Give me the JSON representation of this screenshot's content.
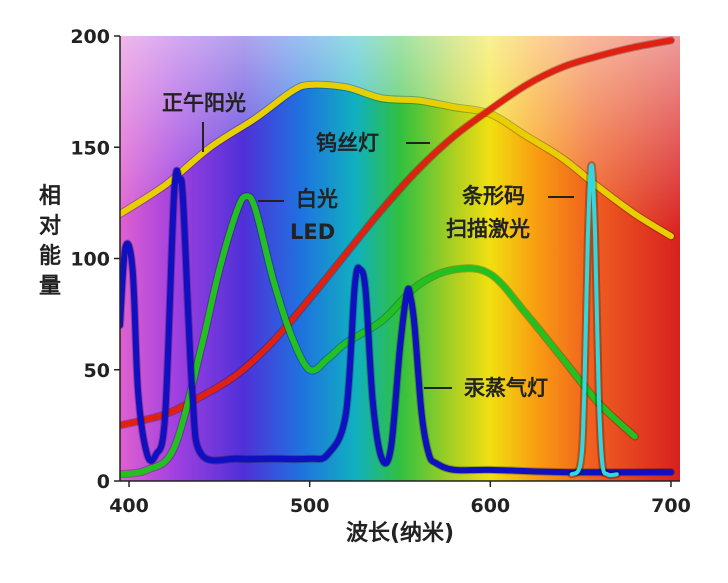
{
  "chart_data": {
    "type": "line",
    "title": "",
    "xlabel": "波长(纳米)",
    "ylabel": "相对能量",
    "ylabel_chars": [
      "相",
      "对",
      "能",
      "量"
    ],
    "xlim": [
      395,
      705
    ],
    "ylim": [
      0,
      200
    ],
    "x_ticks": [
      "400",
      "500",
      "600",
      "700"
    ],
    "y_ticks": [
      "0",
      "50",
      "100",
      "150",
      "200"
    ],
    "grid": false,
    "background": "visible spectrum gradient",
    "series": [
      {
        "name": "正午阳光",
        "color": "#e8d000",
        "x": [
          395,
          420,
          445,
          470,
          490,
          500,
          520,
          540,
          560,
          580,
          600,
          620,
          640,
          660,
          680,
          700
        ],
        "y": [
          120,
          133,
          150,
          163,
          175,
          178,
          177,
          172,
          171,
          168,
          165,
          155,
          145,
          132,
          120,
          110
        ]
      },
      {
        "name": "钨丝灯",
        "color": "#e02010",
        "x": [
          395,
          420,
          440,
          460,
          480,
          500,
          520,
          540,
          560,
          580,
          600,
          620,
          640,
          660,
          680,
          700
        ],
        "y": [
          25,
          30,
          38,
          48,
          63,
          82,
          102,
          122,
          140,
          155,
          167,
          178,
          186,
          191,
          195,
          198
        ]
      },
      {
        "name": "白光LED",
        "color": "#22c020",
        "x": [
          395,
          410,
          425,
          440,
          450,
          460,
          465,
          470,
          480,
          490,
          500,
          510,
          520,
          540,
          560,
          580,
          600,
          620,
          640,
          660,
          680
        ],
        "y": [
          3,
          5,
          15,
          60,
          95,
          122,
          128,
          122,
          90,
          65,
          50,
          55,
          62,
          72,
          88,
          95,
          93,
          75,
          55,
          35,
          20
        ]
      },
      {
        "name": "汞蒸气灯",
        "color": "#1010c0",
        "x": [
          395,
          398,
          402,
          405,
          410,
          415,
          420,
          425,
          428,
          430,
          435,
          440,
          460,
          480,
          500,
          510,
          520,
          525,
          528,
          531,
          535,
          540,
          545,
          550,
          554,
          556,
          558,
          562,
          566,
          570,
          580,
          600,
          640,
          700
        ],
        "y": [
          70,
          105,
          95,
          40,
          12,
          12,
          30,
          130,
          135,
          125,
          40,
          12,
          10,
          10,
          10,
          12,
          30,
          88,
          95,
          85,
          35,
          10,
          15,
          60,
          85,
          82,
          70,
          30,
          12,
          8,
          5,
          5,
          4,
          4
        ]
      },
      {
        "name": "条形码扫描激光",
        "color": "#30d8e0",
        "x": [
          645,
          650,
          652,
          654,
          656,
          658,
          660,
          662,
          665,
          670
        ],
        "y": [
          3,
          8,
          40,
          110,
          142,
          110,
          40,
          8,
          3,
          3
        ]
      }
    ]
  },
  "annotations": {
    "sunlight": "正午阳光",
    "tungsten": "钨丝灯",
    "led_line1": "白光",
    "led_line2": "LED",
    "barcode_line1": "条形码",
    "barcode_line2": "扫描激光",
    "mercury": "汞蒸气灯"
  }
}
